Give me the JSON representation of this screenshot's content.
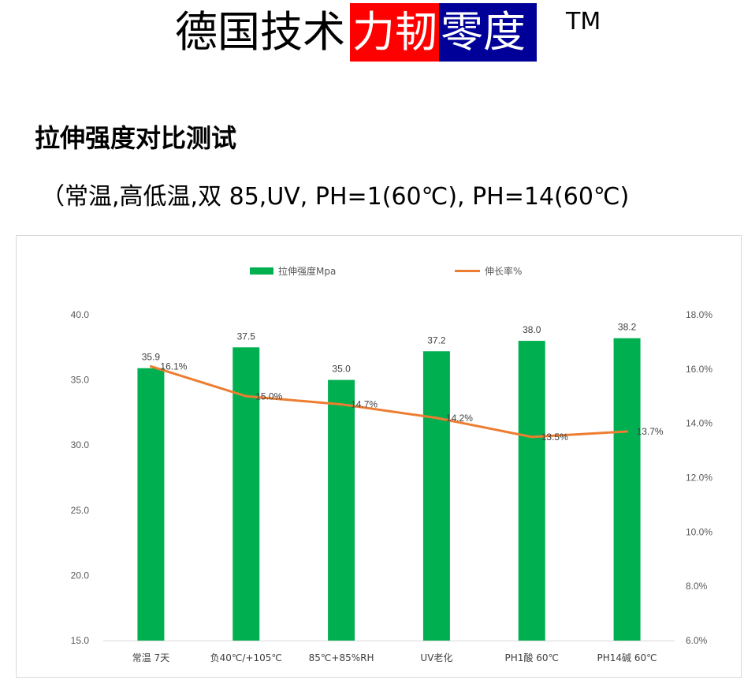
{
  "header": {
    "title_plain": "德国技术",
    "brand_red": "力韧",
    "brand_blue": "零度",
    "trademark": "TM"
  },
  "section_title": "拉伸强度对比测试",
  "conditions": "（常温,高低温,双 85,UV, PH=1(60℃), PH=14(60℃)",
  "chart_data": {
    "type": "bar",
    "categories": [
      "常温 7天",
      "负40℃/+105℃",
      "85℃+85%RH",
      "UV老化",
      "PH1酸 60℃",
      "PH14碱 60℃"
    ],
    "series": [
      {
        "name": "拉伸强度Mpa",
        "type": "bar",
        "axis": "left",
        "color": "#00b050",
        "values": [
          35.9,
          37.5,
          35.0,
          37.2,
          38.0,
          38.2
        ],
        "labels": [
          "35.9",
          "37.5",
          "35.0",
          "37.2",
          "38.0",
          "38.2"
        ]
      },
      {
        "name": "伸长率%",
        "type": "line",
        "axis": "right",
        "color": "#ed7d31",
        "values": [
          16.1,
          15.0,
          14.7,
          14.2,
          13.5,
          13.7
        ],
        "labels": [
          "16.1%",
          "15.0%",
          "14.7%",
          "14.2%",
          "13.5%",
          "13.7%"
        ]
      }
    ],
    "y_left": {
      "min": 15.0,
      "max": 40.0,
      "step": 5.0,
      "tick_labels": [
        "15.0",
        "20.0",
        "25.0",
        "30.0",
        "35.0",
        "40.0"
      ]
    },
    "y_right": {
      "min": 6.0,
      "max": 18.0,
      "step": 2.0,
      "tick_labels": [
        "6.0%",
        "8.0%",
        "10.0%",
        "12.0%",
        "14.0%",
        "16.0%",
        "18.0%"
      ]
    },
    "grid": false,
    "legend_position": "top"
  }
}
